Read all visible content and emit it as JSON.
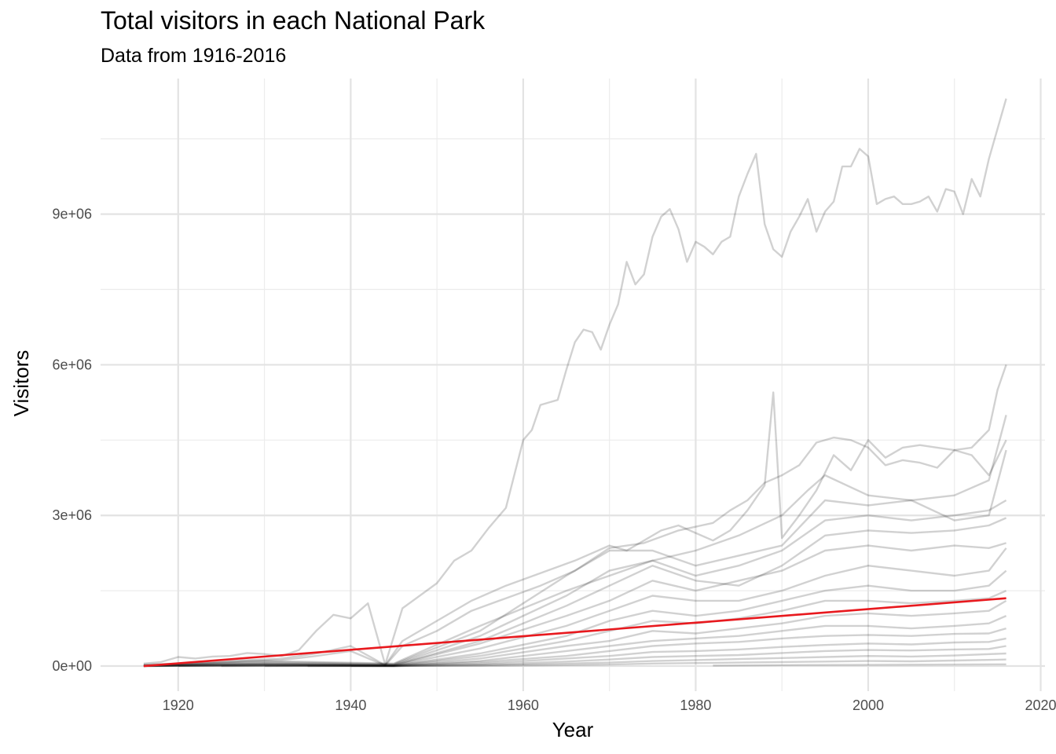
{
  "chart_data": {
    "type": "line",
    "title": "Total visitors in each National Park",
    "subtitle": "Data from 1916-2016",
    "xlabel": "Year",
    "ylabel": "Visitors",
    "xlim": [
      1911,
      2020.5
    ],
    "ylim": [
      -500000,
      11700000
    ],
    "x_ticks": [
      1920,
      1940,
      1960,
      1980,
      2000,
      2020
    ],
    "x_tick_labels": [
      "1920",
      "1940",
      "1960",
      "1980",
      "2000",
      "2020"
    ],
    "y_ticks": [
      0,
      3000000,
      6000000,
      9000000
    ],
    "y_tick_labels": [
      "0e+00",
      "3e+06",
      "6e+06",
      "9e+06"
    ],
    "grid": true,
    "legend": "none",
    "series_color": "#000000",
    "series_opacity": 0.18,
    "trend_color": "#e8191e",
    "trend": {
      "x": [
        1916,
        2016
      ],
      "y": [
        0,
        1350000
      ]
    },
    "series": [
      {
        "x": [
          1916,
          1918,
          1920,
          1922,
          1924,
          1926,
          1928,
          1930,
          1932,
          1934,
          1936,
          1938,
          1940,
          1942,
          1944,
          1946,
          1948,
          1950,
          1952,
          1954,
          1956,
          1958,
          1960,
          1961,
          1962,
          1963,
          1964,
          1965,
          1966,
          1967,
          1968,
          1969,
          1970,
          1971,
          1972,
          1973,
          1974,
          1975,
          1976,
          1977,
          1978,
          1979,
          1980,
          1981,
          1982,
          1983,
          1984,
          1985,
          1986,
          1987,
          1988,
          1989,
          1990,
          1991,
          1992,
          1993,
          1994,
          1995,
          1996,
          1997,
          1998,
          1999,
          2000,
          2001,
          2002,
          2003,
          2004,
          2005,
          2006,
          2007,
          2008,
          2009,
          2010,
          2011,
          2012,
          2013,
          2014,
          2015,
          2016
        ],
        "y": [
          50000,
          80000,
          180000,
          150000,
          190000,
          200000,
          260000,
          240000,
          200000,
          320000,
          700000,
          1020000,
          950000,
          1250000,
          30000,
          1150000,
          1400000,
          1650000,
          2100000,
          2300000,
          2750000,
          3150000,
          4500000,
          4700000,
          5200000,
          5250000,
          5300000,
          5900000,
          6450000,
          6700000,
          6650000,
          6300000,
          6800000,
          7200000,
          8050000,
          7600000,
          7800000,
          8550000,
          8950000,
          9100000,
          8700000,
          8050000,
          8450000,
          8350000,
          8200000,
          8450000,
          8550000,
          9350000,
          9800000,
          10200000,
          8800000,
          8300000,
          8150000,
          8650000,
          8950000,
          9300000,
          8650000,
          9050000,
          9250000,
          9950000,
          9950000,
          10300000,
          10150000,
          9200000,
          9300000,
          9350000,
          9200000,
          9200000,
          9250000,
          9350000,
          9050000,
          9500000,
          9450000,
          9000000,
          9700000,
          9350000,
          10100000,
          10700000,
          11300000
        ]
      },
      {
        "x": [
          1916,
          1920,
          1924,
          1928,
          1932,
          1936,
          1940,
          1944,
          1946,
          1950,
          1954,
          1958,
          1962,
          1966,
          1970,
          1972,
          1974,
          1976,
          1978,
          1980,
          1982,
          1984,
          1986,
          1988,
          1989,
          1990,
          1992,
          1994,
          1996,
          1998,
          2000,
          2002,
          2004,
          2006,
          2008,
          2010,
          2012,
          2014,
          2015,
          2016
        ],
        "y": [
          30000,
          50000,
          80000,
          120000,
          150000,
          250000,
          400000,
          20000,
          500000,
          900000,
          1300000,
          1600000,
          1850000,
          2100000,
          2400000,
          2300000,
          2500000,
          2700000,
          2800000,
          2650000,
          2500000,
          2700000,
          3100000,
          3600000,
          5450000,
          2550000,
          3000000,
          3500000,
          4200000,
          3900000,
          4500000,
          4150000,
          4350000,
          4400000,
          4350000,
          4300000,
          4350000,
          4700000,
          5500000,
          6000000
        ]
      },
      {
        "x": [
          1916,
          1920,
          1924,
          1928,
          1932,
          1936,
          1940,
          1944,
          1946,
          1950,
          1954,
          1958,
          1962,
          1966,
          1970,
          1974,
          1978,
          1982,
          1984,
          1986,
          1988,
          1990,
          1992,
          1994,
          1996,
          1998,
          2000,
          2002,
          2004,
          2006,
          2008,
          2010,
          2012,
          2014,
          2016
        ],
        "y": [
          20000,
          40000,
          60000,
          100000,
          120000,
          200000,
          300000,
          10000,
          400000,
          700000,
          1100000,
          1350000,
          1600000,
          1900000,
          2350000,
          2450000,
          2700000,
          2850000,
          3100000,
          3300000,
          3650000,
          3800000,
          4000000,
          4450000,
          4550000,
          4500000,
          4350000,
          4000000,
          4100000,
          4050000,
          3950000,
          4300000,
          4200000,
          3800000,
          4500000
        ]
      },
      {
        "x": [
          1916,
          1930,
          1945,
          1955,
          1965,
          1970,
          1975,
          1980,
          1985,
          1990,
          1993,
          1995,
          2000,
          2005,
          2010,
          2014,
          2016
        ],
        "y": [
          10000,
          100000,
          50000,
          800000,
          1500000,
          1800000,
          2100000,
          2300000,
          2600000,
          3000000,
          3500000,
          3800000,
          3400000,
          3300000,
          3400000,
          3700000,
          5000000
        ]
      },
      {
        "x": [
          1916,
          1930,
          1945,
          1955,
          1965,
          1970,
          1975,
          1980,
          1985,
          1990,
          1995,
          2000,
          2005,
          2010,
          2014,
          2016
        ],
        "y": [
          10000,
          80000,
          40000,
          700000,
          1800000,
          2300000,
          2300000,
          2000000,
          2200000,
          2400000,
          3300000,
          3200000,
          3300000,
          2900000,
          3000000,
          4300000
        ]
      },
      {
        "x": [
          1916,
          1930,
          1945,
          1955,
          1965,
          1970,
          1975,
          1980,
          1985,
          1990,
          1995,
          2000,
          2005,
          2010,
          2014,
          2016
        ],
        "y": [
          5000,
          60000,
          30000,
          600000,
          1400000,
          1900000,
          2100000,
          1800000,
          2000000,
          2300000,
          2900000,
          3000000,
          2900000,
          3000000,
          3100000,
          3300000
        ]
      },
      {
        "x": [
          1916,
          1930,
          1945,
          1955,
          1965,
          1970,
          1975,
          1980,
          1985,
          1990,
          1995,
          2000,
          2005,
          2010,
          2014,
          2016
        ],
        "y": [
          5000,
          50000,
          20000,
          500000,
          1200000,
          1600000,
          2000000,
          1700000,
          1600000,
          2000000,
          2600000,
          2700000,
          2650000,
          2700000,
          2800000,
          2950000
        ]
      },
      {
        "x": [
          1916,
          1930,
          1945,
          1955,
          1965,
          1970,
          1975,
          1980,
          1985,
          1990,
          1995,
          2000,
          2005,
          2010,
          2014,
          2016
        ],
        "y": [
          3000,
          40000,
          20000,
          450000,
          1000000,
          1300000,
          1700000,
          1500000,
          1700000,
          1900000,
          2300000,
          2400000,
          2300000,
          2400000,
          2350000,
          2450000
        ]
      },
      {
        "x": [
          1916,
          1930,
          1945,
          1955,
          1965,
          1970,
          1975,
          1980,
          1985,
          1990,
          1995,
          2000,
          2005,
          2010,
          2014,
          2016
        ],
        "y": [
          3000,
          30000,
          15000,
          350000,
          800000,
          1100000,
          1400000,
          1300000,
          1300000,
          1500000,
          1800000,
          2000000,
          1900000,
          1800000,
          1900000,
          2350000
        ]
      },
      {
        "x": [
          1916,
          1930,
          1945,
          1955,
          1965,
          1970,
          1975,
          1980,
          1985,
          1990,
          1995,
          2000,
          2005,
          2010,
          2014,
          2016
        ],
        "y": [
          2000,
          25000,
          10000,
          250000,
          600000,
          900000,
          1100000,
          1000000,
          1100000,
          1300000,
          1500000,
          1600000,
          1500000,
          1500000,
          1600000,
          1900000
        ]
      },
      {
        "x": [
          1916,
          1930,
          1945,
          1955,
          1965,
          1970,
          1975,
          1980,
          1985,
          1990,
          1995,
          2000,
          2005,
          2010,
          2014,
          2016
        ],
        "y": [
          2000,
          20000,
          10000,
          200000,
          500000,
          700000,
          900000,
          850000,
          950000,
          1100000,
          1300000,
          1300000,
          1250000,
          1300000,
          1350000,
          1500000
        ]
      },
      {
        "x": [
          1916,
          1930,
          1945,
          1955,
          1965,
          1970,
          1975,
          1980,
          1985,
          1990,
          1995,
          2000,
          2005,
          2010,
          2014,
          2016
        ],
        "y": [
          1000,
          15000,
          5000,
          150000,
          400000,
          500000,
          700000,
          650000,
          750000,
          850000,
          1000000,
          1050000,
          1000000,
          1050000,
          1100000,
          1300000
        ]
      },
      {
        "x": [
          1916,
          1930,
          1945,
          1955,
          1965,
          1970,
          1975,
          1980,
          1985,
          1990,
          1995,
          2000,
          2005,
          2010,
          2014,
          2016
        ],
        "y": [
          1000,
          10000,
          5000,
          100000,
          300000,
          400000,
          500000,
          550000,
          600000,
          700000,
          800000,
          800000,
          750000,
          800000,
          850000,
          1000000
        ]
      },
      {
        "x": [
          1920,
          1935,
          1945,
          1955,
          1965,
          1970,
          1975,
          1980,
          1985,
          1990,
          1995,
          2000,
          2005,
          2010,
          2014,
          2016
        ],
        "y": [
          1000,
          8000,
          3000,
          80000,
          200000,
          300000,
          400000,
          450000,
          480000,
          550000,
          600000,
          620000,
          600000,
          640000,
          650000,
          750000
        ]
      },
      {
        "x": [
          1925,
          1935,
          1945,
          1955,
          1965,
          1970,
          1975,
          1980,
          1985,
          1990,
          1995,
          2000,
          2005,
          2010,
          2014,
          2016
        ],
        "y": [
          1000,
          5000,
          2000,
          50000,
          150000,
          200000,
          280000,
          300000,
          330000,
          380000,
          420000,
          450000,
          430000,
          470000,
          480000,
          550000
        ]
      },
      {
        "x": [
          1930,
          1940,
          1945,
          1955,
          1965,
          1970,
          1975,
          1980,
          1985,
          1990,
          1995,
          2000,
          2005,
          2010,
          2014,
          2016
        ],
        "y": [
          1000,
          4000,
          1000,
          30000,
          90000,
          130000,
          180000,
          200000,
          220000,
          260000,
          300000,
          320000,
          310000,
          330000,
          340000,
          400000
        ]
      },
      {
        "x": [
          1935,
          1945,
          1955,
          1965,
          1970,
          1975,
          1980,
          1985,
          1990,
          1995,
          2000,
          2005,
          2010,
          2016
        ],
        "y": [
          1000,
          1000,
          15000,
          50000,
          70000,
          100000,
          120000,
          140000,
          160000,
          180000,
          200000,
          190000,
          210000,
          250000
        ]
      },
      {
        "x": [
          1940,
          1945,
          1955,
          1965,
          1970,
          1975,
          1980,
          1985,
          1990,
          1995,
          2000,
          2005,
          2010,
          2016
        ],
        "y": [
          500,
          500,
          5000,
          20000,
          30000,
          50000,
          60000,
          70000,
          80000,
          90000,
          100000,
          95000,
          110000,
          130000
        ]
      },
      {
        "x": [
          1982,
          1990,
          2000,
          2010,
          2016
        ],
        "y": [
          10000,
          20000,
          25000,
          30000,
          35000
        ]
      }
    ]
  }
}
